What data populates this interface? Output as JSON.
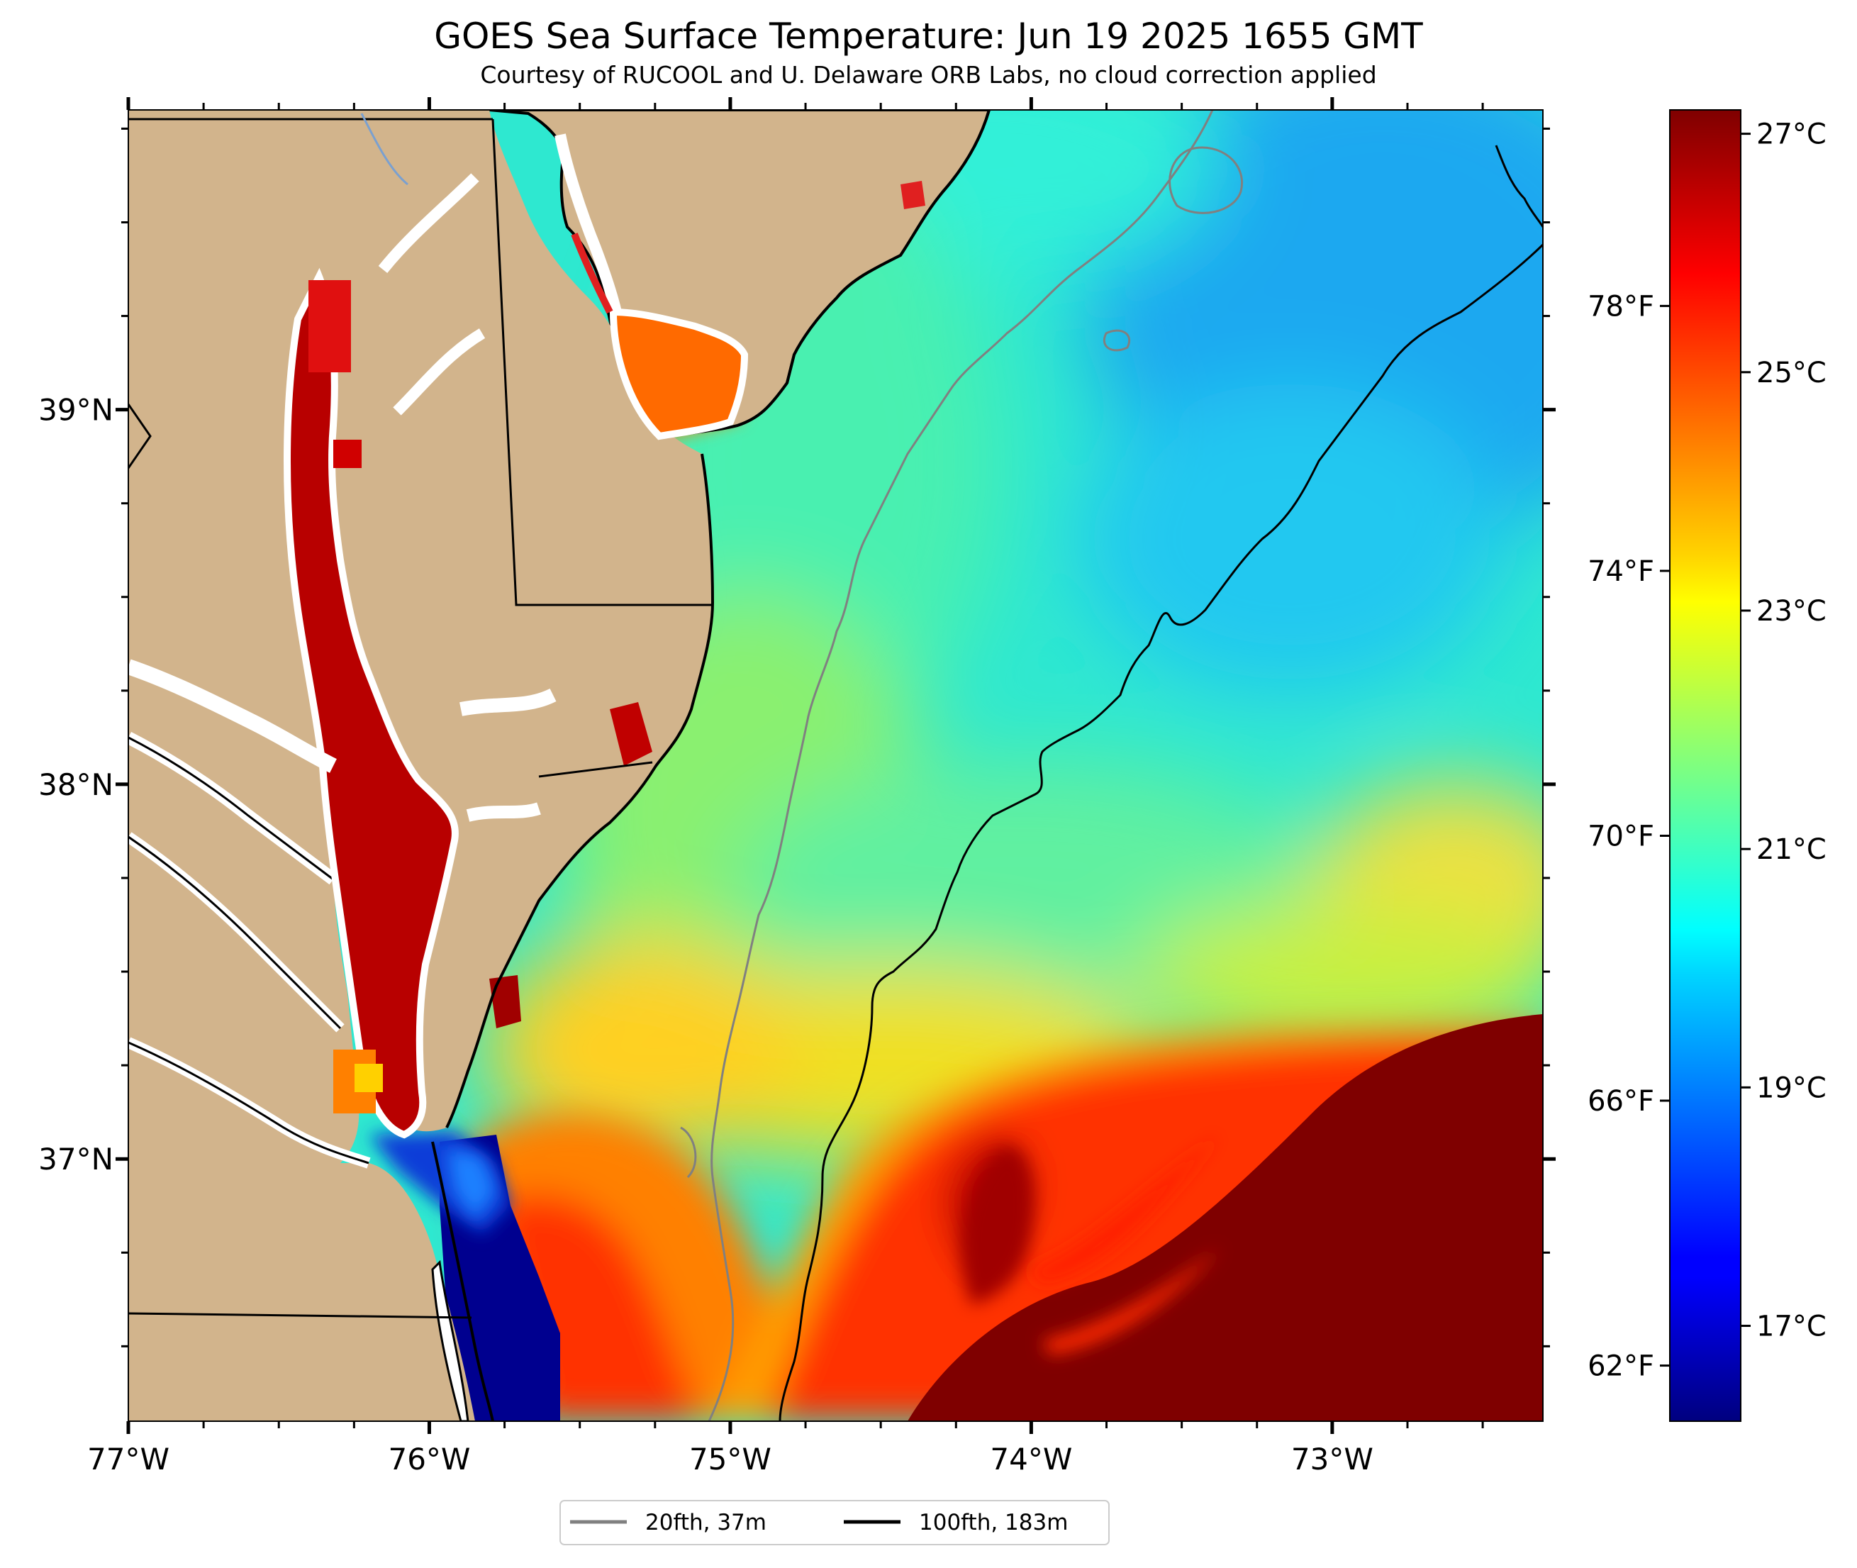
{
  "title": "GOES Sea Surface Temperature: Jun 19 2025 1655 GMT",
  "subtitle": "Courtesy of RUCOOL and U. Delaware ORB Labs, no cloud correction applied",
  "map": {
    "lon_range": [
      -77.0,
      -72.3
    ],
    "lat_range": [
      36.3,
      39.8
    ],
    "lon_ticks": [
      {
        "value": -77,
        "label": "77°W"
      },
      {
        "value": -76,
        "label": "76°W"
      },
      {
        "value": -75,
        "label": "75°W"
      },
      {
        "value": -74,
        "label": "74°W"
      },
      {
        "value": -73,
        "label": "73°W"
      }
    ],
    "lat_ticks": [
      {
        "value": 39,
        "label": "39°N"
      },
      {
        "value": 38,
        "label": "38°N"
      },
      {
        "value": 37,
        "label": "37°N"
      }
    ],
    "colors": {
      "land": "#d2b48c",
      "coast": "#000000",
      "isobath_20": "#808080",
      "isobath_100": "#000000"
    }
  },
  "colorbar": {
    "colormap": "jet",
    "range_c": [
      16.2,
      27.2
    ],
    "celsius_ticks": [
      {
        "value": 17,
        "label": "17°C"
      },
      {
        "value": 19,
        "label": "19°C"
      },
      {
        "value": 21,
        "label": "21°C"
      },
      {
        "value": 23,
        "label": "23°C"
      },
      {
        "value": 25,
        "label": "25°C"
      },
      {
        "value": 27,
        "label": "27°C"
      }
    ],
    "fahrenheit_ticks": [
      {
        "value": 62,
        "label": "62°F"
      },
      {
        "value": 66,
        "label": "66°F"
      },
      {
        "value": 70,
        "label": "70°F"
      },
      {
        "value": 74,
        "label": "74°F"
      },
      {
        "value": 78,
        "label": "78°F"
      }
    ]
  },
  "legend": {
    "items": [
      {
        "label": "20fth, 37m",
        "color": "#808080"
      },
      {
        "label": "100fth, 183m",
        "color": "#000000"
      }
    ]
  }
}
